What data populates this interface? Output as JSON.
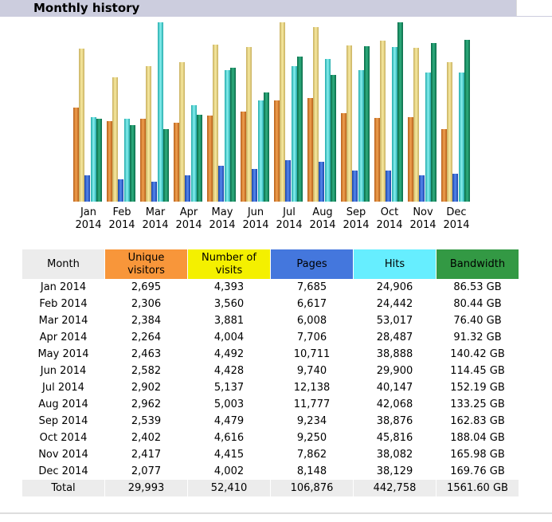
{
  "section_title": "Monthly history",
  "colors": {
    "visitors": "#f8963a",
    "visits": "#f4f000",
    "pages": "#4477dd",
    "hits": "#66eeff",
    "bandwidth": "#339944"
  },
  "table": {
    "headers": [
      "Month",
      "Unique visitors",
      "Number of visits",
      "Pages",
      "Hits",
      "Bandwidth"
    ],
    "rows": [
      [
        "Jan 2014",
        "2,695",
        "4,393",
        "7,685",
        "24,906",
        "86.53 GB"
      ],
      [
        "Feb 2014",
        "2,306",
        "3,560",
        "6,617",
        "24,442",
        "80.44 GB"
      ],
      [
        "Mar 2014",
        "2,384",
        "3,881",
        "6,008",
        "53,017",
        "76.40 GB"
      ],
      [
        "Apr 2014",
        "2,264",
        "4,004",
        "7,706",
        "28,487",
        "91.32 GB"
      ],
      [
        "May 2014",
        "2,463",
        "4,492",
        "10,711",
        "38,888",
        "140.42 GB"
      ],
      [
        "Jun 2014",
        "2,582",
        "4,428",
        "9,740",
        "29,900",
        "114.45 GB"
      ],
      [
        "Jul 2014",
        "2,902",
        "5,137",
        "12,138",
        "40,147",
        "152.19 GB"
      ],
      [
        "Aug 2014",
        "2,962",
        "5,003",
        "11,777",
        "42,068",
        "133.25 GB"
      ],
      [
        "Sep 2014",
        "2,539",
        "4,479",
        "9,234",
        "38,876",
        "162.83 GB"
      ],
      [
        "Oct 2014",
        "2,402",
        "4,616",
        "9,250",
        "45,816",
        "188.04 GB"
      ],
      [
        "Nov 2014",
        "2,417",
        "4,415",
        "7,862",
        "38,082",
        "165.98 GB"
      ],
      [
        "Dec 2014",
        "2,077",
        "4,002",
        "8,148",
        "38,129",
        "169.76 GB"
      ]
    ],
    "total": [
      "Total",
      "29,993",
      "52,410",
      "106,876",
      "442,758",
      "1561.60 GB"
    ]
  },
  "chart_data": {
    "type": "bar",
    "title": "Monthly history",
    "categories": [
      "Jan 2014",
      "Feb 2014",
      "Mar 2014",
      "Apr 2014",
      "May 2014",
      "Jun 2014",
      "Jul 2014",
      "Aug 2014",
      "Sep 2014",
      "Oct 2014",
      "Nov 2014",
      "Dec 2014"
    ],
    "series": [
      {
        "name": "Unique visitors",
        "key": "visitors",
        "values": [
          2695,
          2306,
          2384,
          2264,
          2463,
          2582,
          2902,
          2962,
          2539,
          2402,
          2417,
          2077
        ]
      },
      {
        "name": "Number of visits",
        "key": "visits",
        "values": [
          4393,
          3560,
          3881,
          4004,
          4492,
          4428,
          5137,
          5003,
          4479,
          4616,
          4415,
          4002
        ]
      },
      {
        "name": "Pages",
        "key": "pages",
        "values": [
          7685,
          6617,
          6008,
          7706,
          10711,
          9740,
          12138,
          11777,
          9234,
          9250,
          7862,
          8148
        ]
      },
      {
        "name": "Hits",
        "key": "hits",
        "values": [
          24906,
          24442,
          53017,
          28487,
          38888,
          29900,
          40147,
          42068,
          38876,
          45816,
          38082,
          38129
        ]
      },
      {
        "name": "Bandwidth (GB)",
        "key": "bandwidth",
        "values": [
          86.53,
          80.44,
          76.4,
          91.32,
          140.42,
          114.45,
          152.19,
          133.25,
          162.83,
          188.04,
          165.98,
          169.76
        ]
      }
    ]
  }
}
